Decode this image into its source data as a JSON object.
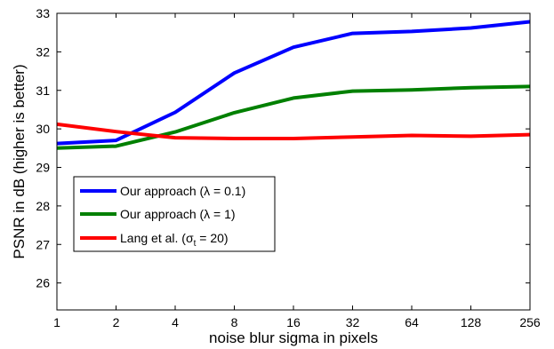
{
  "chart_data": {
    "type": "line",
    "title": "",
    "xlabel": "noise blur sigma in pixels",
    "ylabel": "PSNR in dB (higher is better)",
    "x_scale": "log2",
    "x": [
      1,
      2,
      4,
      8,
      16,
      32,
      64,
      128,
      256
    ],
    "xlim": [
      1,
      256
    ],
    "ylim": [
      25.3,
      33
    ],
    "yticks": [
      26,
      27,
      28,
      29,
      30,
      31,
      32,
      33
    ],
    "grid": false,
    "legend_position": "lower-left",
    "series": [
      {
        "label_parts": [
          "Our approach (",
          "λ",
          " = 0.1)"
        ],
        "color": "#0000ff",
        "values": [
          29.62,
          29.7,
          30.43,
          31.45,
          32.12,
          32.48,
          32.53,
          32.62,
          32.78
        ]
      },
      {
        "label_parts": [
          "Our approach (",
          "λ",
          " = 1)"
        ],
        "color": "#008000",
        "values": [
          29.5,
          29.55,
          29.92,
          30.42,
          30.8,
          30.98,
          31.01,
          31.07,
          31.1
        ]
      },
      {
        "label_parts": [
          "Lang et al. (",
          "σ",
          "t",
          " = 20)"
        ],
        "color": "#ff0000",
        "values": [
          30.12,
          29.93,
          29.77,
          29.75,
          29.75,
          29.79,
          29.83,
          29.81,
          29.85
        ]
      }
    ]
  }
}
